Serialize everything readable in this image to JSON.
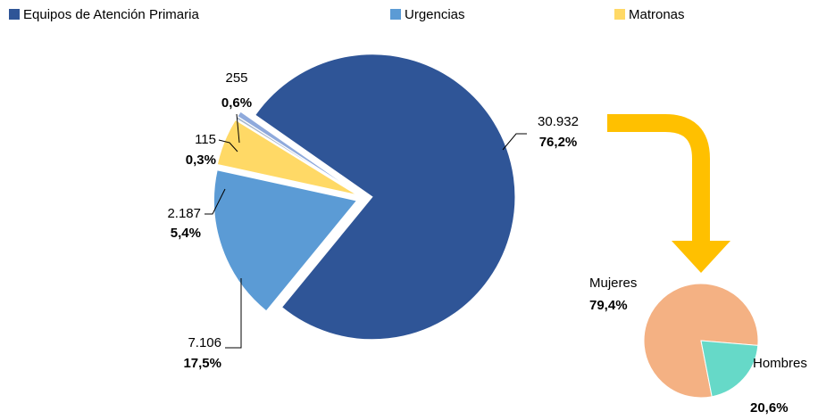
{
  "chart_data": [
    {
      "type": "pie",
      "categories": [
        "Equipos de Atención Primaria",
        "Urgencias",
        "Matronas",
        null,
        null
      ],
      "values": [
        30932,
        7106,
        2187,
        115,
        255
      ],
      "value_labels": [
        "30.932",
        "7.106",
        "2.187",
        "115",
        "255"
      ],
      "percentages": [
        76.2,
        17.5,
        5.4,
        0.3,
        0.6
      ],
      "percentage_labels": [
        "76,2%",
        "17,5%",
        "5,4%",
        "0,3%",
        "0,6%"
      ],
      "colors": [
        "#2f5597",
        "#5b9bd5",
        "#ffd966",
        "#a9b8cc",
        "#8faadc"
      ],
      "legend": "top"
    },
    {
      "type": "pie",
      "categories": [
        "Mujeres",
        "Hombres"
      ],
      "values": [
        79.4,
        20.6
      ],
      "value_labels": [
        "79,4%",
        "20,6%"
      ],
      "colors": [
        "#f4b183",
        "#66d9c8"
      ]
    }
  ]
}
